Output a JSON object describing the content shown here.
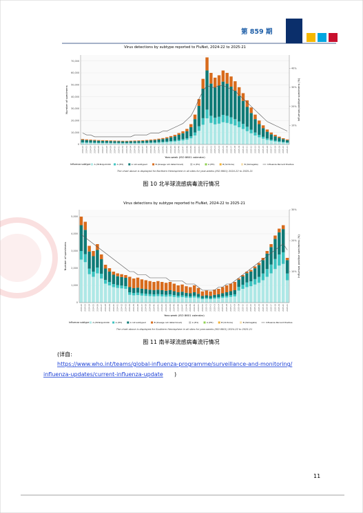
{
  "header": {
    "issue": "第 859 期"
  },
  "chart_data": [
    {
      "type": "bar",
      "title": "Virus detections by subtype reported to FluNet, 2024-22 to 2025-21",
      "y_label": "Number of specimens",
      "y2_label": "Influenza positive specimens (%)",
      "x_label": "Year-week (ISO 8601 calendar)",
      "legend_title": "Influenza subtype",
      "note": "The chart above is displayed for Northern Hemisphere in all sites for year-weeks (ISO 8601) 2024-22 to 2025-21",
      "caption": "图 10   北半球流感病毒流行情况",
      "categories": [
        "2024-22",
        "2024-23",
        "2024-24",
        "2024-25",
        "2024-26",
        "2024-27",
        "2024-28",
        "2024-29",
        "2024-30",
        "2024-31",
        "2024-32",
        "2024-33",
        "2024-34",
        "2024-35",
        "2024-36",
        "2024-37",
        "2024-38",
        "2024-39",
        "2024-40",
        "2024-41",
        "2024-42",
        "2024-43",
        "2024-44",
        "2024-45",
        "2024-46",
        "2024-47",
        "2024-48",
        "2024-49",
        "2024-50",
        "2024-51",
        "2024-52",
        "2025-01",
        "2025-02",
        "2025-03",
        "2025-04",
        "2025-05",
        "2025-06",
        "2025-07",
        "2025-08",
        "2025-09",
        "2025-10",
        "2025-11",
        "2025-12",
        "2025-13",
        "2025-14",
        "2025-15",
        "2025-16",
        "2025-17",
        "2025-18",
        "2025-19",
        "2025-20",
        "2025-21"
      ],
      "ylim": [
        0,
        75000
      ],
      "yticks": [
        0,
        {
          "value": 10000,
          "label": "10,000"
        },
        {
          "value": 20000,
          "label": "20,000"
        },
        {
          "value": 30000,
          "label": "30,000"
        },
        {
          "value": 40000,
          "label": "40,000"
        },
        {
          "value": 50000,
          "label": "50,000"
        },
        {
          "value": 60000,
          "label": "60,000"
        },
        {
          "value": 70000,
          "label": "70,000"
        }
      ],
      "y2lim": [
        0,
        47
      ],
      "y2ticks": [
        {
          "value": 10,
          "label": "10%"
        },
        {
          "value": 20,
          "label": "20%"
        },
        {
          "value": 30,
          "label": "30%"
        },
        {
          "value": 40,
          "label": "40%"
        }
      ],
      "grid": true,
      "series": [
        {
          "name": "A (H1N1)pdm09",
          "color": "#aee8e6",
          "values": [
            1350,
            1260,
            1200,
            1140,
            1080,
            1050,
            1020,
            990,
            960,
            930,
            900,
            900,
            930,
            960,
            990,
            1050,
            1110,
            1200,
            1290,
            1440,
            1590,
            1800,
            2100,
            2400,
            2850,
            3300,
            3900,
            5100,
            7500,
            11400,
            16500,
            21900,
            18000,
            16800,
            17400,
            18600,
            18000,
            17100,
            15900,
            14400,
            12900,
            11100,
            9300,
            7500,
            6000,
            4800,
            3750,
            3000,
            2400,
            1950,
            1560,
            1260
          ]
        },
        {
          "name": "A (H3)",
          "color": "#3cc3c0",
          "values": [
            450,
            420,
            400,
            380,
            360,
            350,
            340,
            330,
            320,
            310,
            300,
            300,
            310,
            320,
            330,
            350,
            370,
            400,
            430,
            480,
            530,
            600,
            700,
            800,
            950,
            1100,
            1300,
            1700,
            2500,
            3800,
            5500,
            7300,
            6000,
            5600,
            5800,
            6200,
            6000,
            5700,
            5300,
            4800,
            4300,
            3700,
            3100,
            2500,
            2000,
            1600,
            1250,
            1000,
            800,
            650,
            520,
            420
          ]
        },
        {
          "name": "A not subtyped",
          "color": "#0e7a76",
          "values": [
            2025,
            1890,
            1800,
            1710,
            1620,
            1575,
            1530,
            1485,
            1440,
            1395,
            1350,
            1350,
            1395,
            1440,
            1485,
            1575,
            1665,
            1800,
            1935,
            2160,
            2385,
            2700,
            3150,
            3600,
            4275,
            4950,
            5850,
            7650,
            11250,
            17100,
            24750,
            32850,
            27000,
            25200,
            26100,
            27900,
            27000,
            25650,
            23850,
            21600,
            19350,
            16650,
            13950,
            11250,
            9000,
            7200,
            5625,
            4500,
            3600,
            2925,
            2340,
            1890
          ]
        },
        {
          "name": "B (lineage not determined)",
          "color": "#d86b1c",
          "values": [
            675,
            630,
            600,
            570,
            540,
            525,
            510,
            495,
            480,
            465,
            450,
            450,
            465,
            480,
            495,
            525,
            555,
            600,
            645,
            720,
            795,
            900,
            1050,
            1200,
            1425,
            1650,
            1950,
            2550,
            3750,
            5700,
            8250,
            10950,
            9000,
            8400,
            8700,
            9300,
            9000,
            8550,
            7950,
            7200,
            6450,
            5550,
            4650,
            3750,
            3000,
            2400,
            1875,
            1500,
            1200,
            975,
            780,
            630
          ]
        }
      ],
      "legend_extra": [
        {
          "name": "A (H1)",
          "color": "#bdbdbd"
        },
        {
          "name": "A (H5)",
          "color": "#8fd14f"
        },
        {
          "name": "B (Victoria)",
          "color": "#f2b134"
        },
        {
          "name": "B (Yamagata)",
          "color": "#f6dfae"
        }
      ],
      "line": {
        "name": "Influenza Percent Positive",
        "color": "#555555",
        "axis": "y2",
        "values": [
          6,
          5,
          5,
          4,
          4,
          4,
          4,
          4,
          4,
          4,
          4,
          4,
          4,
          5,
          5,
          5,
          5,
          6,
          6,
          6,
          7,
          7,
          8,
          9,
          10,
          11,
          13,
          15,
          19,
          24,
          28,
          31,
          30,
          30,
          31,
          31,
          30,
          29,
          28,
          26,
          24,
          22,
          20,
          18,
          16,
          14,
          12,
          11,
          10,
          9,
          8,
          7
        ]
      }
    },
    {
      "type": "bar",
      "title": "Virus detections by subtype reported to FluNet, 2024-22 to 2025-21",
      "y_label": "Number of specimens",
      "y2_label": "Influenza positive specimens (%)",
      "x_label": "Year-week (ISO 8601 calendar)",
      "legend_title": "Influenza subtype",
      "note": "The chart above is displayed for Southern Hemisphere in all sites for year-weeks (ISO 8601) 2024-22 to 2025-21",
      "caption": "图 11   南半球流感病毒流行情况",
      "categories": [
        "2024-22",
        "2024-23",
        "2024-24",
        "2024-25",
        "2024-26",
        "2024-27",
        "2024-28",
        "2024-29",
        "2024-30",
        "2024-31",
        "2024-32",
        "2024-33",
        "2024-34",
        "2024-35",
        "2024-36",
        "2024-37",
        "2024-38",
        "2024-39",
        "2024-40",
        "2024-41",
        "2024-42",
        "2024-43",
        "2024-44",
        "2024-45",
        "2024-46",
        "2024-47",
        "2024-48",
        "2024-49",
        "2024-50",
        "2024-51",
        "2024-52",
        "2025-01",
        "2025-02",
        "2025-03",
        "2025-04",
        "2025-05",
        "2025-06",
        "2025-07",
        "2025-08",
        "2025-09",
        "2025-10",
        "2025-11",
        "2025-12",
        "2025-13",
        "2025-14",
        "2025-15",
        "2025-16",
        "2025-17",
        "2025-18",
        "2025-19",
        "2025-20",
        "2025-21"
      ],
      "ylim": [
        0,
        5400
      ],
      "yticks": [
        0,
        {
          "value": 1000,
          "label": "1,000"
        },
        {
          "value": 2000,
          "label": "2,000"
        },
        {
          "value": 3000,
          "label": "3,000"
        },
        {
          "value": 4000,
          "label": "4,000"
        },
        {
          "value": 5000,
          "label": "5,000"
        }
      ],
      "y2lim": [
        0,
        30
      ],
      "y2ticks": [
        {
          "value": 10,
          "label": "10%"
        },
        {
          "value": 20,
          "label": "20%"
        },
        {
          "value": 30,
          "label": "30%"
        }
      ],
      "grid": true,
      "series": [
        {
          "name": "A (H1N1)pdm09",
          "color": "#aee8e6",
          "values": [
            2500,
            2350,
            1650,
            1500,
            1700,
            1400,
            1100,
            1000,
            900,
            850,
            825,
            800,
            450,
            420,
            435,
            405,
            390,
            375,
            360,
            375,
            360,
            345,
            360,
            330,
            300,
            315,
            285,
            270,
            300,
            255,
            195,
            210,
            195,
            225,
            240,
            270,
            300,
            330,
            360,
            700,
            800,
            900,
            950,
            1050,
            1150,
            1300,
            1500,
            1700,
            1950,
            2150,
            2250,
            1300
          ]
        },
        {
          "name": "A (H3)",
          "color": "#3cc3c0",
          "values": [
            500,
            470,
            330,
            300,
            340,
            280,
            220,
            200,
            180,
            170,
            165,
            160,
            150,
            140,
            145,
            135,
            130,
            125,
            120,
            125,
            120,
            115,
            120,
            110,
            100,
            105,
            95,
            90,
            100,
            85,
            65,
            70,
            65,
            75,
            80,
            90,
            100,
            110,
            120,
            210,
            240,
            270,
            285,
            315,
            345,
            390,
            450,
            510,
            585,
            645,
            675,
            390
          ]
        },
        {
          "name": "A not subtyped",
          "color": "#0e7a76",
          "values": [
            1500,
            1410,
            990,
            900,
            1020,
            840,
            660,
            600,
            540,
            510,
            495,
            480,
            300,
            280,
            290,
            270,
            260,
            250,
            240,
            250,
            240,
            230,
            240,
            220,
            200,
            210,
            190,
            180,
            200,
            170,
            130,
            140,
            130,
            150,
            160,
            180,
            200,
            220,
            240,
            420,
            480,
            540,
            570,
            630,
            690,
            780,
            900,
            1020,
            1170,
            1290,
            1350,
            780
          ]
        },
        {
          "name": "B (lineage not determined)",
          "color": "#d86b1c",
          "values": [
            500,
            470,
            330,
            300,
            340,
            280,
            220,
            200,
            180,
            170,
            165,
            160,
            600,
            560,
            580,
            540,
            520,
            500,
            480,
            500,
            480,
            460,
            480,
            440,
            400,
            420,
            380,
            360,
            400,
            340,
            260,
            280,
            260,
            300,
            320,
            360,
            400,
            440,
            480,
            70,
            80,
            90,
            95,
            105,
            115,
            130,
            150,
            170,
            195,
            215,
            225,
            130
          ]
        }
      ],
      "legend_extra": [
        {
          "name": "A (H1)",
          "color": "#bdbdbd"
        },
        {
          "name": "A (H5)",
          "color": "#8fd14f"
        },
        {
          "name": "B (Victoria)",
          "color": "#f2b134"
        },
        {
          "name": "B (Yamagata)",
          "color": "#f6dfae"
        }
      ],
      "line": {
        "name": "Influenza Percent Positive",
        "color": "#555555",
        "axis": "y2",
        "values": [
          22,
          21,
          20,
          19,
          18,
          17,
          16,
          15,
          14,
          13,
          12,
          11,
          10,
          10,
          9,
          9,
          9,
          8,
          8,
          8,
          8,
          8,
          7,
          7,
          7,
          7,
          6,
          6,
          6,
          5,
          4,
          4,
          4,
          4,
          5,
          5,
          6,
          6,
          7,
          8,
          9,
          10,
          11,
          12,
          13,
          14,
          15,
          16,
          17,
          18,
          19,
          17
        ]
      }
    }
  ],
  "source": {
    "prefix": "(详自:",
    "link_line1": "https://www.who.int/teams/global-influenza-programme/surveillance-and-monitoring/",
    "link_line2": "influenza-updates/current-influenza-update",
    "suffix": ")"
  },
  "page_number": "11"
}
